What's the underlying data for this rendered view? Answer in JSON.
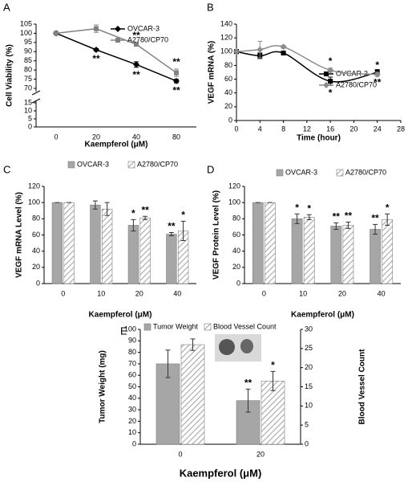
{
  "chart_data": [
    {
      "panel": "A",
      "type": "line",
      "x_label": "Kaempferol (μM)",
      "y_label": "Cell Viability (%)",
      "categories": [
        "0",
        "20",
        "40",
        "80"
      ],
      "ylim": [
        70,
        105
      ],
      "yticks": [
        70,
        75,
        80,
        85,
        90,
        95,
        100,
        105
      ],
      "ylim_lower": [
        0,
        15
      ],
      "yticks_lower": [
        0,
        5,
        10,
        15
      ],
      "legend": "upper right",
      "smooth": false,
      "series": [
        {
          "name": "OVCAR-3",
          "color": "#000000",
          "marker": "diamond",
          "values": [
            100,
            91,
            83,
            74
          ],
          "errors": [
            0,
            0.7,
            1.5,
            1
          ],
          "annotations": [
            null,
            "**",
            "**",
            "**"
          ],
          "annotation_side": "below"
        },
        {
          "name": "A2780/CP70",
          "color": "#808080",
          "marker": "square",
          "values": [
            100,
            102.5,
            94,
            78.5
          ],
          "errors": [
            0,
            2,
            1,
            2
          ],
          "annotations": [
            null,
            null,
            "**",
            "**"
          ],
          "annotation_side": "above"
        }
      ]
    },
    {
      "panel": "B",
      "type": "line",
      "x_label": "Time (hour)",
      "y_label": "VEGF mRNA (%)",
      "x": [
        0,
        4,
        8,
        16,
        24
      ],
      "xlim": [
        0,
        28
      ],
      "xticks": [
        0,
        4,
        8,
        12,
        16,
        20,
        24,
        28
      ],
      "ylim": [
        0,
        140
      ],
      "yticks": [
        0,
        20,
        40,
        60,
        80,
        100,
        120,
        140
      ],
      "legend": "center right",
      "smooth": true,
      "series": [
        {
          "name": "OVCAR-3",
          "color": "#000000",
          "marker": "square",
          "values": [
            100,
            94,
            98,
            57,
            70
          ],
          "errors": [
            0,
            4,
            2,
            6,
            4
          ],
          "annotations": [
            null,
            null,
            null,
            "*",
            "**"
          ],
          "annotation_side": "below"
        },
        {
          "name": "A2780/CP70",
          "color": "#8c8c8c",
          "marker": "diamond",
          "values": [
            100,
            103,
            107,
            73,
            67
          ],
          "errors": [
            0,
            12,
            2,
            3,
            3
          ],
          "annotations": [
            null,
            null,
            null,
            "*",
            "*"
          ],
          "annotation_side": "above"
        }
      ]
    },
    {
      "panel": "C",
      "type": "bar",
      "x_label": "Kaempferol (μM)",
      "y_label": "VEGF mRNA Level (%)",
      "categories": [
        "0",
        "10",
        "20",
        "40"
      ],
      "ylim": [
        0,
        120
      ],
      "yticks": [
        0,
        20,
        40,
        60,
        80,
        100,
        120
      ],
      "legend": "upper center",
      "series": [
        {
          "name": "OVCAR-3",
          "color": "#a6a6a6",
          "pattern": "solid",
          "values": [
            100,
            97,
            72,
            61
          ],
          "errors": [
            0,
            5,
            7,
            2
          ],
          "annotations": [
            null,
            null,
            "*",
            "**"
          ]
        },
        {
          "name": "A2780/CP70",
          "color": "#a6a6a6",
          "pattern": "hatch",
          "values": [
            100,
            92,
            81,
            65
          ],
          "errors": [
            0,
            8,
            2,
            12
          ],
          "annotations": [
            null,
            null,
            "**",
            "*"
          ]
        }
      ]
    },
    {
      "panel": "D",
      "type": "bar",
      "x_label": "Kaempferol (μM)",
      "y_label": "VEGF Protein Level (%)",
      "categories": [
        "0",
        "10",
        "20",
        "40"
      ],
      "ylim": [
        0,
        120
      ],
      "yticks": [
        0,
        20,
        40,
        60,
        80,
        100,
        120
      ],
      "legend": "upper center",
      "series": [
        {
          "name": "OVCAR-3",
          "color": "#a6a6a6",
          "pattern": "solid",
          "values": [
            100,
            80,
            71,
            67
          ],
          "errors": [
            0,
            6,
            4,
            6
          ],
          "annotations": [
            null,
            "*",
            "**",
            "**"
          ]
        },
        {
          "name": "A2780/CP70",
          "color": "#a6a6a6",
          "pattern": "hatch",
          "values": [
            100,
            82,
            72,
            79
          ],
          "errors": [
            0,
            3,
            4,
            7
          ],
          "annotations": [
            null,
            "*",
            "**",
            "*"
          ]
        }
      ]
    },
    {
      "panel": "E",
      "type": "bar",
      "x_label": "Kaempferol (μM)",
      "y_label": "Tumor Weight (mg)",
      "y2_label": "Blood Vessel Count",
      "categories": [
        "0",
        "20"
      ],
      "ylim": [
        0,
        100
      ],
      "yticks": [
        0,
        10,
        20,
        30,
        40,
        50,
        60,
        70,
        80,
        90,
        100
      ],
      "y2lim": [
        0,
        30
      ],
      "y2ticks": [
        0,
        5,
        10,
        15,
        20,
        25,
        30
      ],
      "legend": "upper center",
      "series": [
        {
          "name": "Tumor Weight",
          "color": "#a6a6a6",
          "pattern": "solid",
          "values": [
            70,
            38
          ],
          "errors": [
            12,
            10
          ],
          "annotations": [
            null,
            "**"
          ]
        },
        {
          "name": "Blood Vessel Count",
          "color": "#a6a6a6",
          "pattern": "hatch",
          "axis": "y2",
          "values": [
            26,
            16.5
          ],
          "errors": [
            1.5,
            2.5
          ],
          "annotations": [
            null,
            "*"
          ]
        }
      ]
    }
  ]
}
